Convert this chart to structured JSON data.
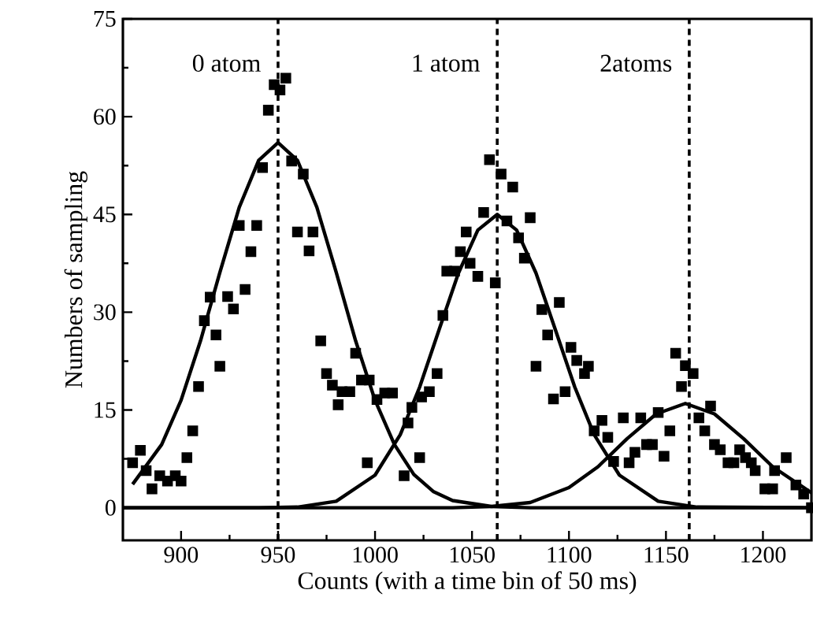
{
  "chart_data": {
    "type": "scatter",
    "xlabel": "Counts (with a time bin of 50 ms)",
    "ylabel": "Numbers of sampling",
    "xlim": [
      870,
      1225
    ],
    "ylim": [
      -5,
      75
    ],
    "xticks": [
      900,
      950,
      1000,
      1050,
      1100,
      1150,
      1200
    ],
    "yticks": [
      0,
      15,
      30,
      45,
      60,
      75
    ],
    "series": [
      {
        "color": "#000000",
        "marker": "square",
        "x": [
          875,
          879,
          882,
          885,
          889,
          893,
          897,
          900,
          903,
          906,
          909,
          912,
          915,
          918,
          920,
          924,
          927,
          930,
          933,
          936,
          939,
          942,
          945,
          948,
          951,
          954,
          957,
          960,
          963,
          966,
          968,
          972,
          975,
          978,
          981,
          983,
          987,
          990,
          993,
          996,
          997,
          1001,
          1005,
          1009,
          1015,
          1017,
          1019,
          1023,
          1024,
          1028,
          1032,
          1035,
          1037,
          1041,
          1044,
          1047,
          1049,
          1053,
          1056,
          1059,
          1062,
          1065,
          1068,
          1071,
          1074,
          1077,
          1080,
          1083,
          1086,
          1089,
          1092,
          1095,
          1098,
          1101,
          1104,
          1108,
          1110,
          1113,
          1117,
          1120,
          1123,
          1128,
          1131,
          1134,
          1137,
          1140,
          1143,
          1146,
          1149,
          1152,
          1155,
          1158,
          1160,
          1164,
          1167,
          1170,
          1173,
          1175,
          1178,
          1182,
          1185,
          1188,
          1191,
          1194,
          1196,
          1201,
          1205,
          1206,
          1212,
          1217,
          1221,
          1225
        ],
        "values": [
          6.9,
          8.8,
          5.7,
          2.9,
          4.9,
          4.1,
          4.9,
          4.1,
          7.7,
          11.8,
          18.6,
          28.7,
          32.3,
          26.5,
          21.7,
          32.4,
          30.5,
          43.3,
          33.5,
          39.3,
          43.3,
          52.2,
          61.0,
          64.9,
          64.1,
          65.9,
          53.2,
          42.3,
          51.2,
          39.4,
          42.3,
          25.6,
          20.6,
          18.8,
          15.8,
          17.8,
          17.8,
          23.7,
          19.6,
          6.9,
          19.6,
          16.6,
          17.6,
          17.6,
          4.9,
          13.0,
          15.4,
          7.7,
          17.0,
          17.8,
          20.6,
          29.5,
          36.3,
          36.3,
          39.3,
          42.3,
          37.5,
          35.5,
          45.3,
          53.4,
          34.5,
          51.2,
          44.0,
          49.2,
          41.4,
          38.3,
          44.5,
          21.7,
          30.4,
          26.5,
          16.7,
          31.5,
          17.8,
          24.6,
          22.6,
          20.6,
          21.7,
          11.8,
          13.4,
          10.8,
          7.1,
          13.8,
          6.9,
          8.5,
          13.8,
          9.7,
          9.7,
          14.6,
          7.9,
          11.8,
          23.7,
          18.6,
          21.8,
          20.6,
          13.8,
          11.8,
          15.6,
          9.7,
          8.9,
          6.9,
          6.9,
          8.9,
          7.7,
          6.9,
          5.7,
          2.9,
          2.9,
          5.7,
          7.7,
          3.5,
          2.1,
          0
        ]
      },
      {
        "type": "line",
        "color": "#000000",
        "marker": "none",
        "line_style": "solid",
        "x": [
          875,
          890,
          900,
          910,
          920,
          930,
          940,
          950,
          960,
          970,
          980,
          990,
          1000,
          1010,
          1020,
          1030,
          1040,
          1060,
          1080,
          1225
        ],
        "values": [
          3.6,
          9.7,
          16.5,
          25.6,
          36.1,
          46.1,
          53.3,
          56,
          53.3,
          46.1,
          36.1,
          25.6,
          16.5,
          9.7,
          5.1,
          2.5,
          1.1,
          0.2,
          0,
          0
        ]
      },
      {
        "type": "line",
        "color": "#000000",
        "marker": "none",
        "line_style": "solid",
        "x": [
          870,
          940,
          960,
          980,
          1000,
          1013,
          1023,
          1033,
          1043,
          1053,
          1063,
          1073,
          1083,
          1093,
          1103,
          1113,
          1126,
          1146,
          1166,
          1225
        ],
        "values": [
          0,
          0,
          0.1,
          1.0,
          5.0,
          11.2,
          18.5,
          27.3,
          36.0,
          42.6,
          45,
          42.6,
          36.0,
          27.3,
          18.5,
          11.2,
          5.0,
          1.0,
          0.1,
          0
        ]
      },
      {
        "type": "line",
        "color": "#000000",
        "marker": "none",
        "line_style": "solid",
        "x": [
          870,
          1040,
          1060,
          1080,
          1100,
          1115,
          1130,
          1145,
          1160,
          1175,
          1190,
          1205,
          1225
        ],
        "values": [
          0,
          0,
          0.2,
          0.8,
          3.1,
          6.3,
          10.6,
          14.4,
          16,
          14.4,
          10.6,
          6.3,
          2.3
        ]
      }
    ],
    "ref_lines": [
      {
        "axis": "x",
        "value": 950,
        "label": "0 atom",
        "line_style": "dashed",
        "color": "#000000"
      },
      {
        "axis": "x",
        "value": 1063,
        "label": "1 atom",
        "line_style": "dashed",
        "color": "#000000"
      },
      {
        "axis": "x",
        "value": 1162,
        "label": "2atoms",
        "line_style": "dashed",
        "color": "#000000"
      }
    ]
  }
}
